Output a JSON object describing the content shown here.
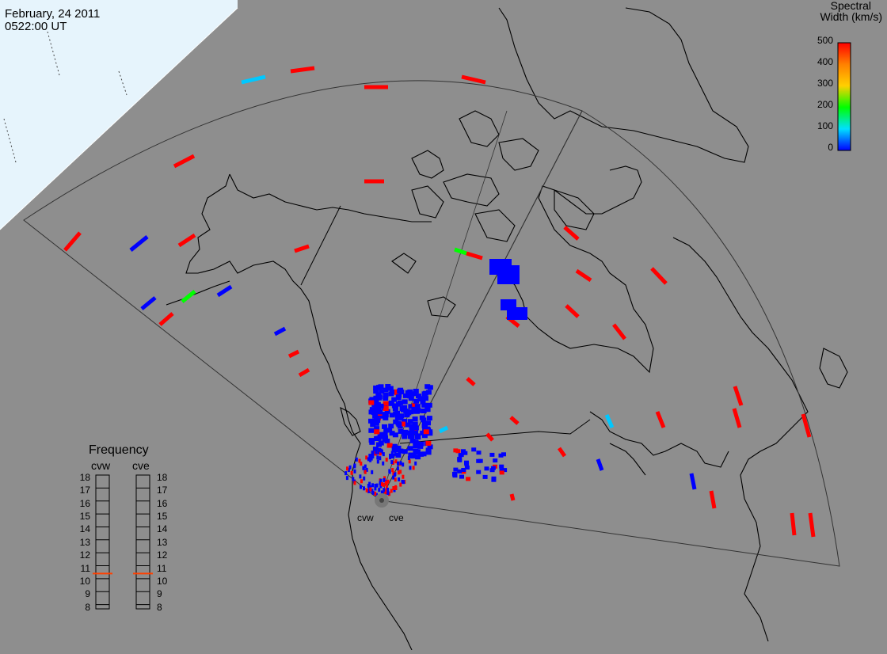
{
  "header": {
    "date": "February, 24 2011",
    "time": "0522:00 UT"
  },
  "colorbar": {
    "title_line1": "Spectral",
    "title_line2": "Width (km/s)",
    "ticks": [
      "500",
      "400",
      "300",
      "200",
      "100",
      "0"
    ],
    "colors": [
      "#ff0000",
      "#ff8000",
      "#ffd000",
      "#00ff00",
      "#00e0ff",
      "#0000ff"
    ]
  },
  "frequency_panel": {
    "title": "Frequency",
    "columns": [
      "cvw",
      "cve"
    ],
    "scale": [
      "18",
      "17",
      "16",
      "15",
      "14",
      "13",
      "12",
      "11",
      "10",
      "9",
      "8"
    ],
    "cvw_mhz": 10.9,
    "cve_mhz": 10.9,
    "marker_color": "#ff4000"
  },
  "radars": {
    "west_label": "cvw",
    "east_label": "cve"
  },
  "colors": {
    "background": "#8e8e8e",
    "ocean_daylight": "#e6f4fc",
    "coast": "#000000",
    "fov": "#2a2a2a",
    "low_width": "#0000ff",
    "high_width": "#ff0000",
    "mid_green": "#00ff00",
    "mid_cyan": "#00c8ff"
  }
}
